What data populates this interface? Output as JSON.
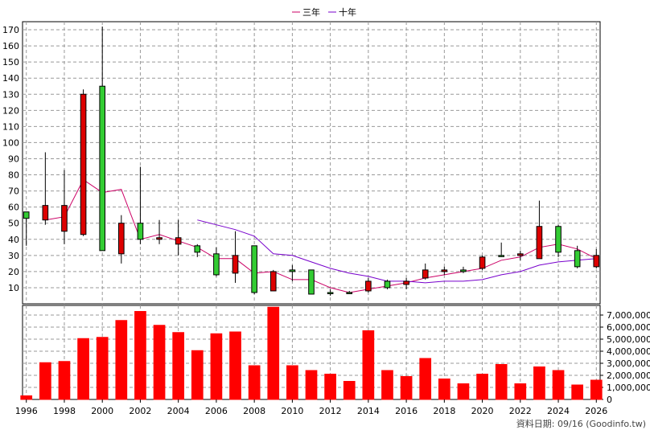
{
  "chart_data": {
    "type": "candlestick",
    "legend": [
      {
        "name": "三年",
        "color": "#cc0066"
      },
      {
        "name": "十年",
        "color": "#7700cc"
      }
    ],
    "price_axis": {
      "ylim": [
        0,
        175
      ],
      "ticks": [
        10,
        20,
        30,
        40,
        50,
        60,
        70,
        80,
        90,
        100,
        110,
        120,
        130,
        140,
        150,
        160,
        170
      ]
    },
    "volume_axis": {
      "ylim": [
        0,
        7800000
      ],
      "ticks": [
        0,
        1000000,
        2000000,
        3000000,
        4000000,
        5000000,
        6000000,
        7000000
      ],
      "tick_labels": [
        "0",
        "1,000,000",
        "2,000,000",
        "3,000,000",
        "4,000,000",
        "5,000,000",
        "6,000,000",
        "7,000,000"
      ]
    },
    "x_axis": {
      "ticks": [
        1996,
        1998,
        2000,
        2002,
        2004,
        2006,
        2008,
        2010,
        2012,
        2014,
        2016,
        2018,
        2020,
        2022,
        2024,
        2026
      ],
      "xlim": [
        1995.8,
        2026.2
      ]
    },
    "candles": [
      {
        "year": 1996,
        "open": 53,
        "high": 57,
        "low": 36,
        "close": 57
      },
      {
        "year": 1997,
        "open": 61,
        "high": 94,
        "low": 49,
        "close": 52
      },
      {
        "year": 1998,
        "open": 61,
        "high": 83,
        "low": 37,
        "close": 45
      },
      {
        "year": 1999,
        "open": 130,
        "high": 133,
        "low": 42,
        "close": 43
      },
      {
        "year": 2000,
        "open": 33,
        "high": 172,
        "low": 33,
        "close": 135
      },
      {
        "year": 2001,
        "open": 50,
        "high": 55,
        "low": 25,
        "close": 31
      },
      {
        "year": 2002,
        "open": 40,
        "high": 85,
        "low": 37,
        "close": 50
      },
      {
        "year": 2003,
        "open": 41,
        "high": 52,
        "low": 37,
        "close": 40
      },
      {
        "year": 2004,
        "open": 41,
        "high": 52,
        "low": 30,
        "close": 37
      },
      {
        "year": 2005,
        "open": 32,
        "high": 37,
        "low": 29,
        "close": 36
      },
      {
        "year": 2006,
        "open": 18,
        "high": 35,
        "low": 17,
        "close": 31
      },
      {
        "year": 2007,
        "open": 30,
        "high": 45,
        "low": 13,
        "close": 19
      },
      {
        "year": 2008,
        "open": 7,
        "high": 36,
        "low": 6,
        "close": 36
      },
      {
        "year": 2009,
        "open": 20,
        "high": 21,
        "low": 8,
        "close": 8
      },
      {
        "year": 2010,
        "open": 20,
        "high": 24,
        "low": 14,
        "close": 21
      },
      {
        "year": 2011,
        "open": 6,
        "high": 21,
        "low": 6,
        "close": 21
      },
      {
        "year": 2012,
        "open": 7,
        "high": 9,
        "low": 5,
        "close": 7
      },
      {
        "year": 2013,
        "open": 7,
        "high": 8,
        "low": 6,
        "close": 7
      },
      {
        "year": 2014,
        "open": 14,
        "high": 16,
        "low": 7,
        "close": 8
      },
      {
        "year": 2015,
        "open": 10,
        "high": 15,
        "low": 9,
        "close": 14
      },
      {
        "year": 2016,
        "open": 14,
        "high": 16,
        "low": 9,
        "close": 12
      },
      {
        "year": 2017,
        "open": 21,
        "high": 25,
        "low": 15,
        "close": 16
      },
      {
        "year": 2018,
        "open": 21,
        "high": 23,
        "low": 18,
        "close": 20
      },
      {
        "year": 2019,
        "open": 20,
        "high": 23,
        "low": 19,
        "close": 21
      },
      {
        "year": 2020,
        "open": 29,
        "high": 30,
        "low": 21,
        "close": 22
      },
      {
        "year": 2021,
        "open": 30,
        "high": 38,
        "low": 29,
        "close": 30
      },
      {
        "year": 2022,
        "open": 31,
        "high": 33,
        "low": 27,
        "close": 30
      },
      {
        "year": 2023,
        "open": 48,
        "high": 64,
        "low": 28,
        "close": 28
      },
      {
        "year": 2024,
        "open": 32,
        "high": 49,
        "low": 29,
        "close": 48
      },
      {
        "year": 2025,
        "open": 23,
        "high": 36,
        "low": 22,
        "close": 33
      },
      {
        "year": 2026,
        "open": 30,
        "high": 34,
        "low": 22,
        "close": 23
      }
    ],
    "series": [
      {
        "name": "三年",
        "x": [
          1997,
          1998,
          1999,
          2000,
          2001,
          2002,
          2003,
          2004,
          2005,
          2006,
          2007,
          2008,
          2009,
          2010,
          2011,
          2012,
          2013,
          2014,
          2015,
          2016,
          2017,
          2018,
          2019,
          2020,
          2021,
          2022,
          2023,
          2024,
          2025,
          2026
        ],
        "values": [
          52,
          54,
          77,
          69,
          71,
          40,
          43,
          39,
          35,
          28,
          28,
          19,
          20,
          15,
          15,
          10,
          7,
          9,
          11,
          13,
          16,
          18,
          20,
          22,
          27,
          29,
          35,
          37,
          34,
          28
        ]
      },
      {
        "name": "十年",
        "x": [
          2005,
          2006,
          2007,
          2008,
          2009,
          2010,
          2011,
          2012,
          2013,
          2014,
          2015,
          2016,
          2017,
          2018,
          2019,
          2020,
          2021,
          2022,
          2023,
          2024,
          2025,
          2026
        ],
        "values": [
          52,
          49,
          46,
          42,
          31,
          30,
          26,
          22,
          19,
          17,
          14,
          14,
          13,
          14,
          14,
          15,
          18,
          20,
          24,
          26,
          27,
          28
        ]
      }
    ],
    "volume": [
      300000,
      3050000,
      3150000,
      5050000,
      5150000,
      6550000,
      7300000,
      6150000,
      5550000,
      4050000,
      5450000,
      5600000,
      2800000,
      7650000,
      2800000,
      2400000,
      2100000,
      1500000,
      5700000,
      2400000,
      1900000,
      3400000,
      1700000,
      1300000,
      2100000,
      2900000,
      1300000,
      2700000,
      2400000,
      1200000,
      1600000
    ]
  },
  "credit": "資料日期: 09/16  (Goodinfo.tw)"
}
